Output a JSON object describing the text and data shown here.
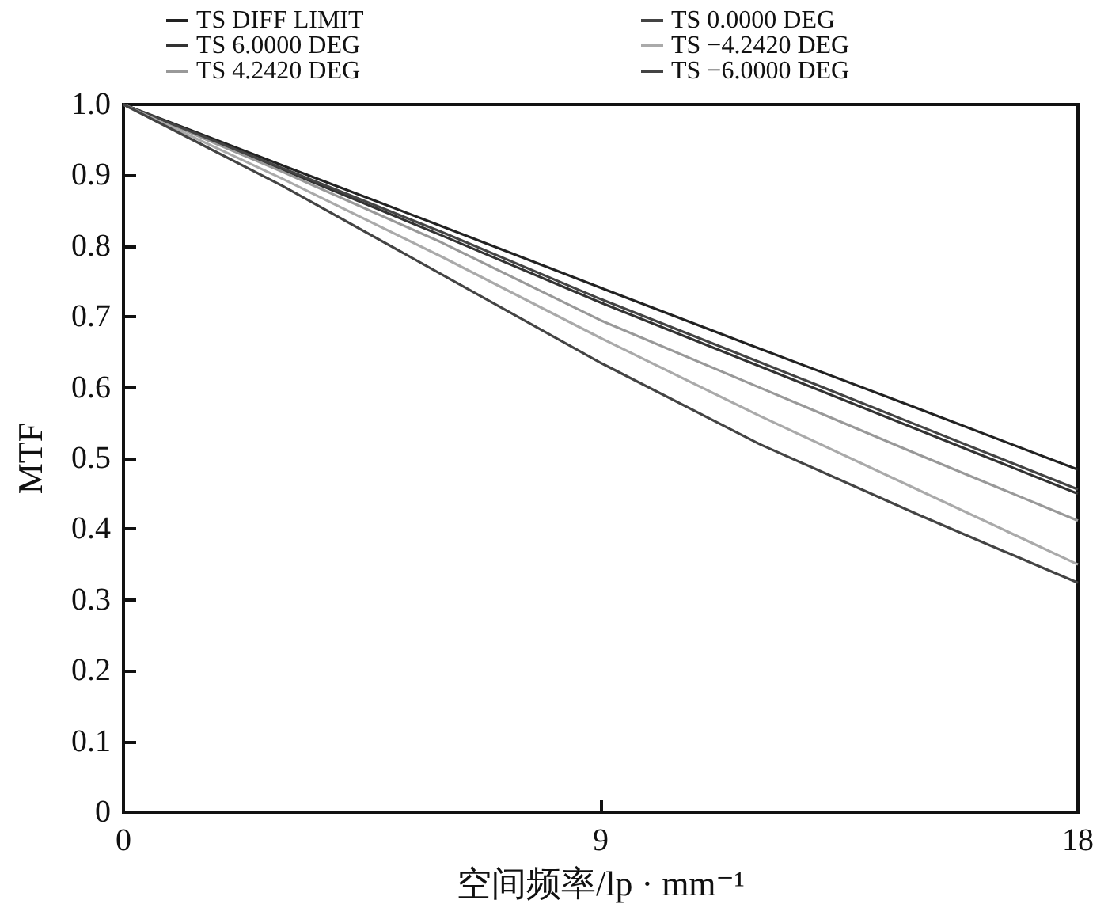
{
  "chart_data": {
    "type": "line",
    "xlabel": "空间频率/lp · mm⁻¹",
    "ylabel": "MTF",
    "x": [
      0,
      3,
      6,
      9,
      12,
      15,
      18
    ],
    "series": [
      {
        "name": "TS DIFF LIMIT",
        "color": "#222222",
        "values": [
          1,
          0.914,
          0.828,
          0.741,
          0.655,
          0.57,
          0.484
        ]
      },
      {
        "name": "TS 6.0000 DEG",
        "color": "#333333",
        "values": [
          1,
          0.908,
          0.815,
          0.72,
          0.63,
          0.54,
          0.45
        ]
      },
      {
        "name": "TS 4.2420 DEG",
        "color": "#999999",
        "values": [
          1,
          0.905,
          0.805,
          0.695,
          0.6,
          0.505,
          0.412
        ]
      },
      {
        "name": "TS 0.0000 DEG",
        "color": "#444444",
        "values": [
          1,
          0.91,
          0.82,
          0.725,
          0.636,
          0.546,
          0.456
        ]
      },
      {
        "name": "TS −4.2420 DEG",
        "color": "#aaaaaa",
        "values": [
          1,
          0.895,
          0.785,
          0.67,
          0.56,
          0.455,
          0.35
        ]
      },
      {
        "name": "TS −6.0000 DEG",
        "color": "#444444",
        "values": [
          1,
          0.885,
          0.76,
          0.635,
          0.52,
          0.42,
          0.324
        ]
      }
    ],
    "xlim": [
      0,
      18
    ],
    "xticks": [
      0,
      9,
      18
    ],
    "ylim": [
      0,
      1
    ],
    "yticks": [
      0,
      0.1,
      0.2,
      0.3,
      0.4,
      0.5,
      0.6,
      0.7,
      0.8,
      0.9,
      {
        "value": 1,
        "label": "1.0"
      }
    ],
    "grid": false,
    "legend": "top",
    "marker": "none",
    "line_style": "solid"
  }
}
